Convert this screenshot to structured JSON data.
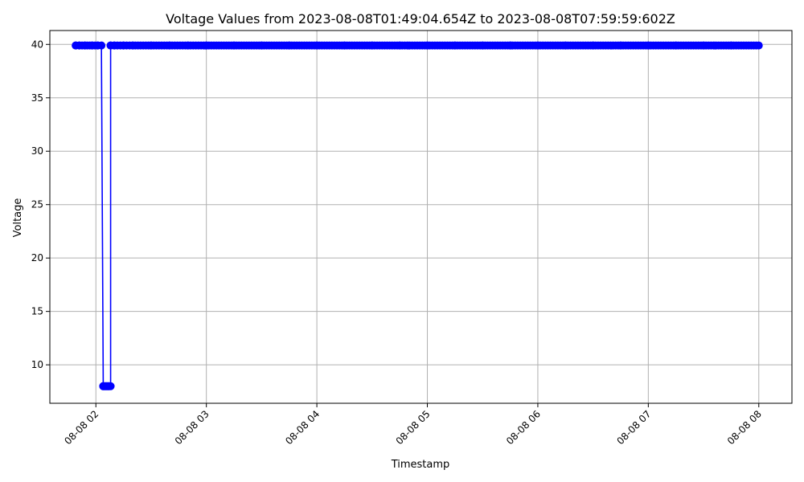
{
  "chart_data": {
    "type": "line",
    "title": "Voltage Values from 2023-08-08T01:49:04.654Z to 2023-08-08T07:59:59:602Z",
    "xlabel": "Timestamp",
    "ylabel": "Voltage",
    "grid": true,
    "line_color": "#0000ff",
    "marker": "circle",
    "x_axis": {
      "type": "time",
      "range": [
        "2023-08-08T01:35:00Z",
        "2023-08-08T08:18:00Z"
      ],
      "ticks": [
        {
          "value": "2023-08-08T02:00:00Z",
          "label": "08-08 02"
        },
        {
          "value": "2023-08-08T03:00:00Z",
          "label": "08-08 03"
        },
        {
          "value": "2023-08-08T04:00:00Z",
          "label": "08-08 04"
        },
        {
          "value": "2023-08-08T05:00:00Z",
          "label": "08-08 05"
        },
        {
          "value": "2023-08-08T06:00:00Z",
          "label": "08-08 06"
        },
        {
          "value": "2023-08-08T07:00:00Z",
          "label": "08-08 07"
        },
        {
          "value": "2023-08-08T08:00:00Z",
          "label": "08-08 08"
        }
      ]
    },
    "y_axis": {
      "range": [
        6.4,
        41.3
      ],
      "ticks": [
        {
          "value": 10,
          "label": "10"
        },
        {
          "value": 15,
          "label": "15"
        },
        {
          "value": 20,
          "label": "20"
        },
        {
          "value": 25,
          "label": "25"
        },
        {
          "value": 30,
          "label": "30"
        },
        {
          "value": 35,
          "label": "35"
        },
        {
          "value": 40,
          "label": "40"
        }
      ]
    },
    "series": [
      {
        "points": [
          {
            "x": "2023-08-08T01:49:04Z",
            "y": 39.9
          },
          {
            "x": "2023-08-08T01:51:00Z",
            "y": 39.9
          },
          {
            "x": "2023-08-08T01:54:00Z",
            "y": 39.9
          },
          {
            "x": "2023-08-08T01:58:00Z",
            "y": 39.9
          },
          {
            "x": "2023-08-08T02:01:00Z",
            "y": 39.9
          },
          {
            "x": "2023-08-08T02:03:00Z",
            "y": 39.9
          },
          {
            "x": "2023-08-08T02:04:00Z",
            "y": 8.0
          },
          {
            "x": "2023-08-08T02:05:00Z",
            "y": 8.0
          },
          {
            "x": "2023-08-08T02:06:00Z",
            "y": 8.0
          },
          {
            "x": "2023-08-08T02:07:00Z",
            "y": 8.0
          },
          {
            "x": "2023-08-08T02:08:00Z",
            "y": 8.0
          },
          {
            "x": "2023-08-08T02:08:00Z",
            "y": 39.9
          },
          {
            "x": "2023-08-08T02:10:00Z",
            "y": 39.9
          },
          {
            "x": "2023-08-08T02:15:00Z",
            "y": 39.9
          },
          {
            "x": "2023-08-08T02:20:00Z",
            "y": 39.9
          },
          {
            "x": "2023-08-08T02:30:00Z",
            "y": 39.9
          },
          {
            "x": "2023-08-08T02:40:00Z",
            "y": 39.9
          },
          {
            "x": "2023-08-08T02:50:00Z",
            "y": 39.9
          },
          {
            "x": "2023-08-08T03:00:00Z",
            "y": 39.9
          },
          {
            "x": "2023-08-08T03:15:00Z",
            "y": 39.9
          },
          {
            "x": "2023-08-08T03:30:00Z",
            "y": 39.9
          },
          {
            "x": "2023-08-08T03:45:00Z",
            "y": 39.9
          },
          {
            "x": "2023-08-08T04:00:00Z",
            "y": 39.9
          },
          {
            "x": "2023-08-08T04:15:00Z",
            "y": 39.9
          },
          {
            "x": "2023-08-08T04:30:00Z",
            "y": 39.9
          },
          {
            "x": "2023-08-08T04:45:00Z",
            "y": 39.9
          },
          {
            "x": "2023-08-08T05:00:00Z",
            "y": 39.9
          },
          {
            "x": "2023-08-08T05:15:00Z",
            "y": 39.9
          },
          {
            "x": "2023-08-08T05:30:00Z",
            "y": 39.9
          },
          {
            "x": "2023-08-08T05:45:00Z",
            "y": 39.9
          },
          {
            "x": "2023-08-08T06:00:00Z",
            "y": 39.9
          },
          {
            "x": "2023-08-08T06:15:00Z",
            "y": 39.9
          },
          {
            "x": "2023-08-08T06:30:00Z",
            "y": 39.9
          },
          {
            "x": "2023-08-08T06:45:00Z",
            "y": 39.9
          },
          {
            "x": "2023-08-08T07:00:00Z",
            "y": 39.9
          },
          {
            "x": "2023-08-08T07:15:00Z",
            "y": 39.9
          },
          {
            "x": "2023-08-08T07:30:00Z",
            "y": 39.9
          },
          {
            "x": "2023-08-08T07:45:00Z",
            "y": 39.9
          },
          {
            "x": "2023-08-08T07:59:59Z",
            "y": 39.9
          }
        ]
      }
    ]
  }
}
